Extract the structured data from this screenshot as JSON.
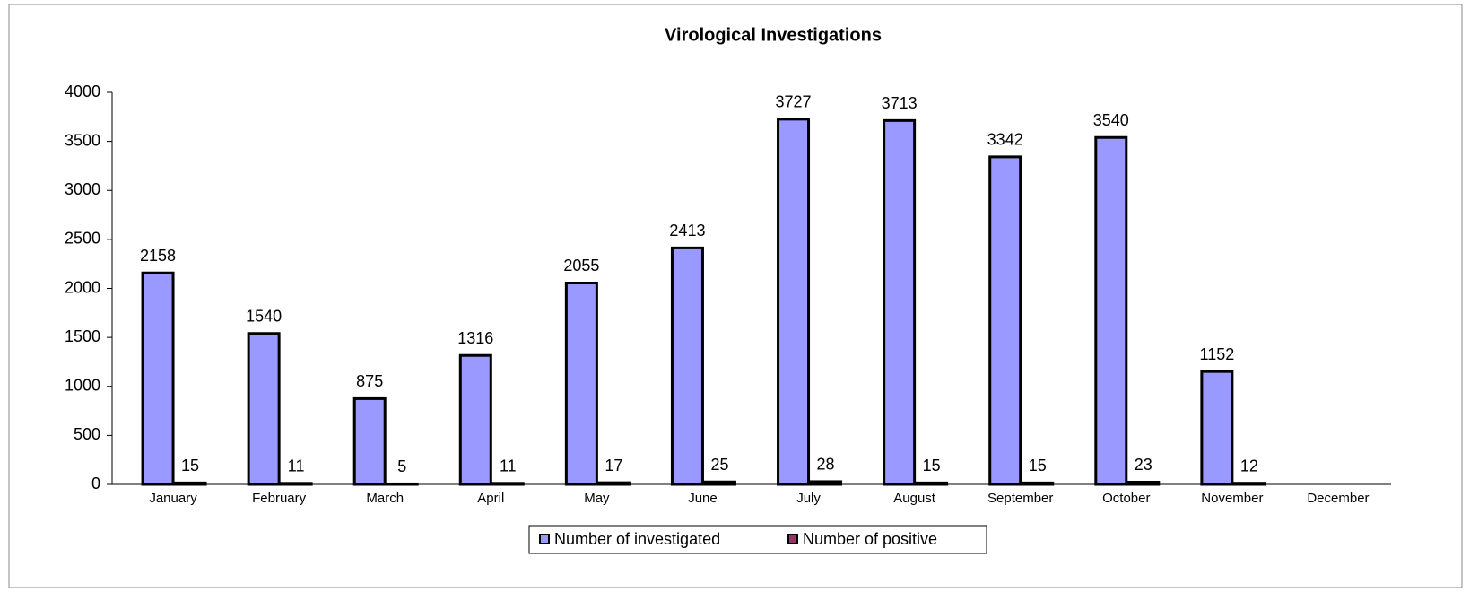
{
  "chart_data": {
    "type": "bar",
    "title": "Virological Investigations",
    "categories": [
      "January",
      "February",
      "March",
      "April",
      "May",
      "June",
      "July",
      "August",
      "September",
      "October",
      "November",
      "December"
    ],
    "series": [
      {
        "name": "Number of investigated",
        "color": "#9999ff",
        "values": [
          2158,
          1540,
          875,
          1316,
          2055,
          2413,
          3727,
          3713,
          3342,
          3540,
          1152,
          null
        ]
      },
      {
        "name": "Number of positive",
        "color": "#993366",
        "values": [
          15,
          11,
          5,
          11,
          17,
          25,
          28,
          15,
          15,
          23,
          12,
          null
        ]
      }
    ],
    "ylim": [
      0,
      4000
    ],
    "yticks": [
      0,
      500,
      1000,
      1500,
      2000,
      2500,
      3000,
      3500,
      4000
    ],
    "legend": "bottom"
  }
}
